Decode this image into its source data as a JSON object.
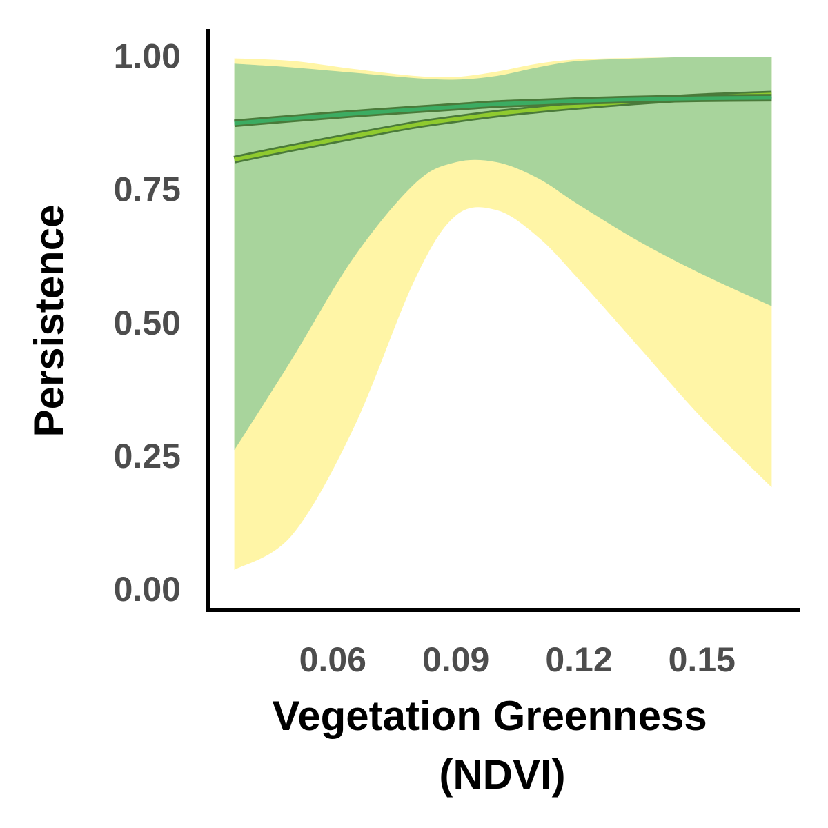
{
  "chart_data": {
    "type": "area",
    "title": "",
    "xlabel_lines": [
      "Vegetation Greenness",
      "(NDVI)"
    ],
    "ylabel": "Persistence",
    "xlim": [
      0.0295,
      0.174
    ],
    "ylim": [
      -0.04,
      1.05
    ],
    "x_ticks": [
      0.06,
      0.09,
      0.12,
      0.15
    ],
    "x_tick_labels": [
      "0.06",
      "0.09",
      "0.12",
      "0.15"
    ],
    "y_ticks": [
      0.0,
      0.25,
      0.5,
      0.75,
      1.0
    ],
    "y_tick_labels": [
      "0.00",
      "0.25",
      "0.50",
      "0.75",
      "1.00"
    ],
    "grid": false,
    "legend": "none",
    "series": [
      {
        "color": "#8fca2f",
        "band_color": "#fff5a6",
        "x": [
          0.036,
          0.05,
          0.065,
          0.08,
          0.09,
          0.1,
          0.11,
          0.12,
          0.135,
          0.15,
          0.167
        ],
        "y": [
          0.805,
          0.827,
          0.849,
          0.87,
          0.881,
          0.891,
          0.899,
          0.906,
          0.915,
          0.922,
          0.927
        ],
        "lower": [
          0.035,
          0.1,
          0.3,
          0.58,
          0.7,
          0.71,
          0.66,
          0.58,
          0.45,
          0.32,
          0.19
        ],
        "upper": [
          0.995,
          0.99,
          0.975,
          0.962,
          0.96,
          0.97,
          0.985,
          0.993,
          0.996,
          0.997,
          0.998
        ]
      },
      {
        "color": "#3cac62",
        "band_color": "#a8d49c",
        "x": [
          0.036,
          0.05,
          0.065,
          0.08,
          0.09,
          0.1,
          0.11,
          0.12,
          0.135,
          0.15,
          0.167
        ],
        "y": [
          0.873,
          0.882,
          0.891,
          0.899,
          0.904,
          0.909,
          0.912,
          0.915,
          0.918,
          0.92,
          0.921
        ],
        "lower": [
          0.26,
          0.43,
          0.62,
          0.76,
          0.8,
          0.8,
          0.77,
          0.72,
          0.65,
          0.59,
          0.53
        ],
        "upper": [
          0.985,
          0.978,
          0.968,
          0.958,
          0.955,
          0.962,
          0.978,
          0.99,
          0.995,
          0.998,
          0.998
        ]
      }
    ]
  }
}
